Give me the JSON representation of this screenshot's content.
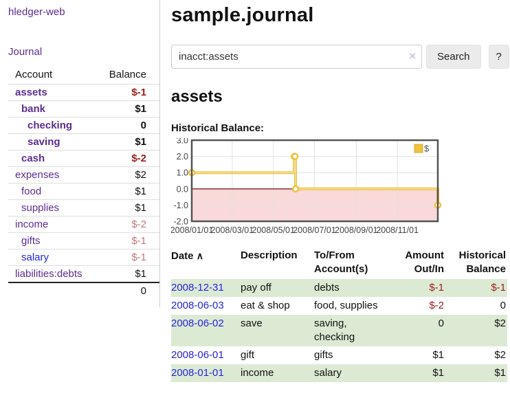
{
  "colors": {
    "purple": "#5c2d91",
    "blue": "#2424dd",
    "neg_strong": "#9b1c1c",
    "neg_faded": "#bb7878",
    "row_green": "#dcead4",
    "gold": "#edc240"
  },
  "app": {
    "title": "hledger-web"
  },
  "sidebar": {
    "journal_link": "Journal",
    "account_header": "Account",
    "balance_header": "Balance",
    "accounts": [
      {
        "name": "assets",
        "depth": 0,
        "bold": true,
        "name_color": "purple",
        "balance": "$-1",
        "balance_color": "neg_strong"
      },
      {
        "name": "bank",
        "depth": 1,
        "bold": true,
        "name_color": "purple",
        "balance": "$1",
        "balance_color": "normal"
      },
      {
        "name": "checking",
        "depth": 2,
        "bold": true,
        "name_color": "purple",
        "balance": "0",
        "balance_color": "normal"
      },
      {
        "name": "saving",
        "depth": 2,
        "bold": true,
        "name_color": "purple",
        "balance": "$1",
        "balance_color": "normal"
      },
      {
        "name": "cash",
        "depth": 1,
        "bold": true,
        "name_color": "purple",
        "balance": "$-2",
        "balance_color": "neg_strong"
      },
      {
        "name": "expenses",
        "depth": 0,
        "bold": false,
        "name_color": "purple",
        "balance": "$2",
        "balance_color": "normal"
      },
      {
        "name": "food",
        "depth": 1,
        "bold": false,
        "name_color": "purple",
        "balance": "$1",
        "balance_color": "normal"
      },
      {
        "name": "supplies",
        "depth": 1,
        "bold": false,
        "name_color": "purple",
        "balance": "$1",
        "balance_color": "normal"
      },
      {
        "name": "income",
        "depth": 0,
        "bold": false,
        "name_color": "purple",
        "balance": "$-2",
        "balance_color": "neg_faded"
      },
      {
        "name": "gifts",
        "depth": 1,
        "bold": false,
        "name_color": "purple",
        "balance": "$-1",
        "balance_color": "neg_faded"
      },
      {
        "name": "salary",
        "depth": 1,
        "bold": false,
        "name_color": "blue",
        "balance": "$-1",
        "balance_color": "neg_faded"
      },
      {
        "name": "liabilities:debts",
        "depth": 0,
        "bold": false,
        "name_color": "purple",
        "balance": "$1",
        "balance_color": "normal"
      }
    ],
    "total": "0"
  },
  "header": {
    "title": "sample.journal"
  },
  "search": {
    "value": "inacct:assets",
    "clear_icon": "×",
    "button_label": "Search",
    "help_label": "?"
  },
  "account_page": {
    "title": "assets",
    "chart_label": "Historical Balance:"
  },
  "chart_data": {
    "type": "line",
    "step": true,
    "title": "Historical Balance",
    "series": [
      {
        "name": "$",
        "color": "#edc240",
        "points": [
          [
            "2008-01-01",
            1
          ],
          [
            "2008-06-01",
            2
          ],
          [
            "2008-06-02",
            2
          ],
          [
            "2008-06-03",
            0
          ],
          [
            "2008-12-31",
            -1
          ]
        ]
      }
    ],
    "x_ticks": [
      "2008/01/01",
      "2008/03/01",
      "2008/05/01",
      "2008/07/01",
      "2008/09/01",
      "2008/11/01"
    ],
    "y_ticks": [
      "3.0",
      "2.0",
      "1.0",
      "0.0",
      "-1.0",
      "-2.0"
    ],
    "ylim": [
      -2,
      3
    ],
    "xlim": [
      "2008-01-01",
      "2008-12-31"
    ],
    "legend": {
      "label": "$",
      "position": "top-right"
    },
    "grid": true,
    "zero_line_color": "#8b1d1d",
    "negative_fill": "#f9d9d9",
    "border_color": "#545454"
  },
  "transactions": {
    "headers": {
      "date": "Date",
      "sort_icon": "∧",
      "description": "Description",
      "accounts": "To/From Account(s)",
      "amount": "Amount Out/In",
      "balance": "Historical Balance"
    },
    "rows": [
      {
        "date": "2008-12-31",
        "description": "pay off",
        "accounts": "debts",
        "amount": "$-1",
        "amount_neg": true,
        "balance": "$-1",
        "balance_neg": true,
        "shaded": true
      },
      {
        "date": "2008-06-03",
        "description": "eat & shop",
        "accounts": "food, supplies",
        "amount": "$-2",
        "amount_neg": true,
        "balance": "0",
        "balance_neg": false,
        "shaded": false
      },
      {
        "date": "2008-06-02",
        "description": "save",
        "accounts": "saving, checking",
        "amount": "0",
        "amount_neg": false,
        "balance": "$2",
        "balance_neg": false,
        "shaded": true
      },
      {
        "date": "2008-06-01",
        "description": "gift",
        "accounts": "gifts",
        "amount": "$1",
        "amount_neg": false,
        "balance": "$2",
        "balance_neg": false,
        "shaded": false
      },
      {
        "date": "2008-01-01",
        "description": "income",
        "accounts": "salary",
        "amount": "$1",
        "amount_neg": false,
        "balance": "$1",
        "balance_neg": false,
        "shaded": true
      }
    ]
  }
}
